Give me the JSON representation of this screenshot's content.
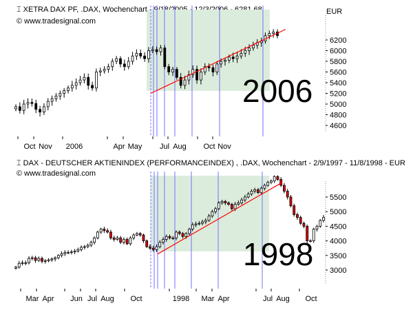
{
  "chart_data": [
    {
      "type": "candlestick",
      "title": "XETRA DAX PF, .DAX, Wochenchart - 9/18/2005 - 12/3/2006 - 6281.68",
      "subtitle": "© www.tradesignal.com",
      "unit": "EUR",
      "annotation": "2006",
      "yticks": [
        4600,
        4800,
        5000,
        5200,
        5400,
        5600,
        5800,
        6000,
        6200
      ],
      "ylim": [
        4400,
        6700
      ],
      "xticks": [
        "Oct",
        "Nov",
        "2006",
        "Apr",
        "May",
        "Jul",
        "Aug",
        "Oct",
        "Nov"
      ],
      "closes": [
        4950,
        4880,
        5000,
        5030,
        5010,
        4900,
        4850,
        4950,
        5050,
        5100,
        5150,
        5200,
        5250,
        5300,
        5350,
        5400,
        5450,
        5500,
        5350,
        5300,
        5600,
        5620,
        5650,
        5700,
        5800,
        5850,
        5750,
        5700,
        5800,
        5900,
        5950,
        5900,
        5850,
        6000,
        6020,
        5980,
        6050,
        5700,
        5600,
        5650,
        5500,
        5350,
        5450,
        5550,
        5650,
        5450,
        5600,
        5700,
        5680,
        5600,
        5750,
        5800,
        5820,
        5880,
        5850,
        5900,
        5950,
        6000,
        6050,
        6100,
        6150,
        6180,
        6280,
        6320,
        6350,
        6281
      ],
      "trendline": [
        5200,
        6400
      ],
      "up_color": "#ffffff",
      "down_color": "#000000"
    },
    {
      "type": "candlestick",
      "title": "DAX  - DEUTSCHER AKTIENINDEX (PERFORMANCEINDEX) , .DAX, Wochenchart - 2/9/1997 - 11/8/1998 - EUR",
      "subtitle": "© www.tradesignal.com",
      "annotation": "1998",
      "yticks": [
        3000,
        3500,
        4000,
        4500,
        5000,
        5500
      ],
      "ylim": [
        2400,
        6400
      ],
      "xticks": [
        "Mar",
        "Apr",
        "Jun",
        "Jul",
        "Aug",
        "Oct",
        "1998",
        "Mar",
        "Apr",
        "Jul",
        "Aug",
        "Oct"
      ],
      "closes": [
        3100,
        3230,
        3250,
        3250,
        3400,
        3420,
        3330,
        3400,
        3300,
        3320,
        3350,
        3380,
        3420,
        3500,
        3560,
        3600,
        3600,
        3620,
        3650,
        3700,
        3780,
        3800,
        3850,
        3950,
        4100,
        4300,
        4400,
        4350,
        4300,
        4100,
        4050,
        4100,
        3950,
        4050,
        3900,
        4100,
        4200,
        4250,
        4200,
        4000,
        3800,
        3750,
        3700,
        3800,
        3950,
        4050,
        4150,
        4100,
        4100,
        4300,
        4250,
        4150,
        4250,
        4400,
        4550,
        4580,
        4600,
        4650,
        4700,
        4850,
        5000,
        5100,
        5300,
        5350,
        5300,
        5250,
        5100,
        5250,
        5300,
        5400,
        5500,
        5600,
        5700,
        5750,
        5650,
        5800,
        5900,
        6000,
        6050,
        6200,
        6100,
        5900,
        5700,
        5500,
        5200,
        4900,
        4800,
        4600,
        4500,
        4000,
        4000,
        4400,
        4500,
        4700,
        4800
      ],
      "trendline": [
        3550,
        6000
      ],
      "up_color": "#ffffff",
      "down_color": "#e00000"
    }
  ],
  "colors": {
    "shade": "#dcecdc",
    "vline": "#7070ff",
    "trend": "#ff0000"
  }
}
